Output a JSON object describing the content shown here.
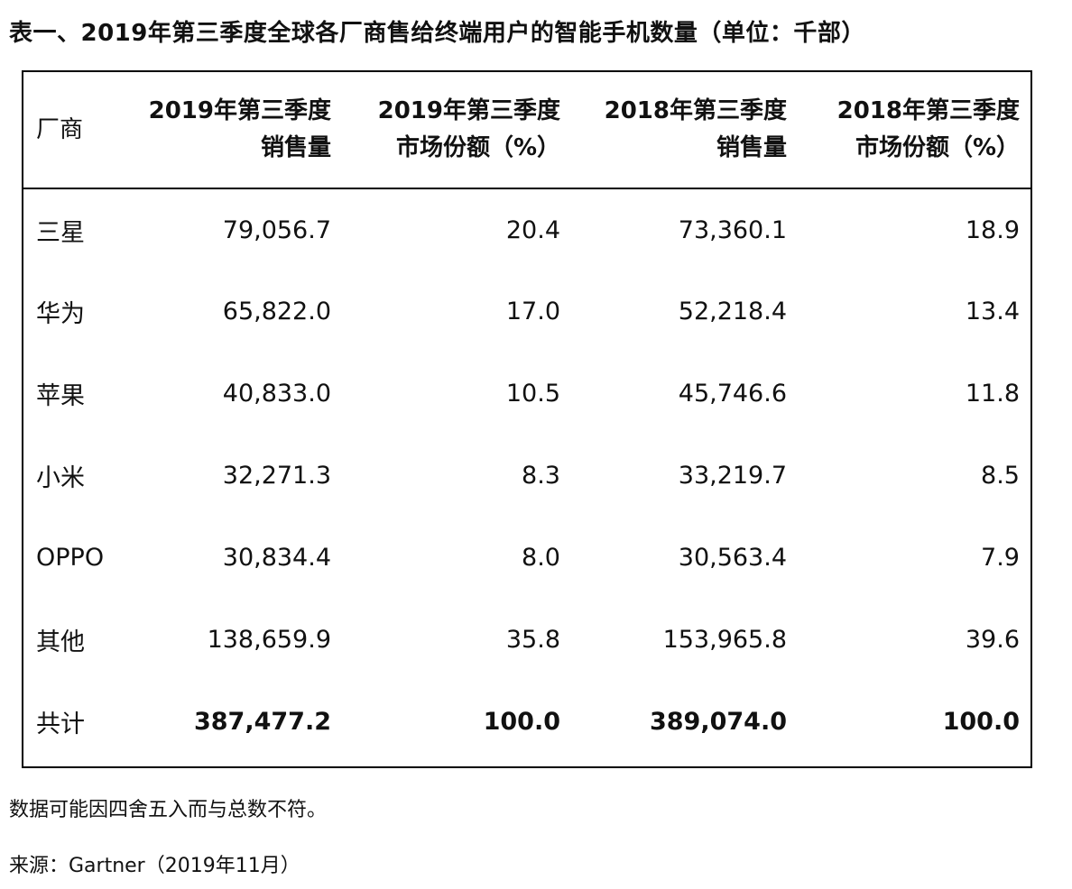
{
  "title": "表一、2019年第三季度全球各厂商售给终端用户的智能手机数量（单位：千部）",
  "table": {
    "headers": [
      [
        "厂商"
      ],
      [
        "2019年第三季度",
        "销售量"
      ],
      [
        "2019年第三季度",
        "市场份额（%）"
      ],
      [
        "2018年第三季度",
        "销售量"
      ],
      [
        "2018年第三季度",
        "市场份额（%）"
      ]
    ],
    "rows": [
      [
        "三星",
        "79,056.7",
        "20.4",
        "73,360.1",
        "18.9"
      ],
      [
        "华为",
        "65,822.0",
        "17.0",
        "52,218.4",
        "13.4"
      ],
      [
        "苹果",
        "40,833.0",
        "10.5",
        "45,746.6",
        "11.8"
      ],
      [
        "小米",
        "32,271.3",
        "8.3",
        "33,219.7",
        "8.5"
      ],
      [
        "OPPO",
        "30,834.4",
        "8.0",
        "30,563.4",
        "7.9"
      ],
      [
        "其他",
        "138,659.9",
        "35.8",
        "153,965.8",
        "39.6"
      ]
    ],
    "total": [
      "共计",
      "387,477.2",
      "100.0",
      "389,074.0",
      "100.0"
    ]
  },
  "note": "数据可能因四舍五入而与总数不符。",
  "source": "来源：Gartner（2019年11月）"
}
